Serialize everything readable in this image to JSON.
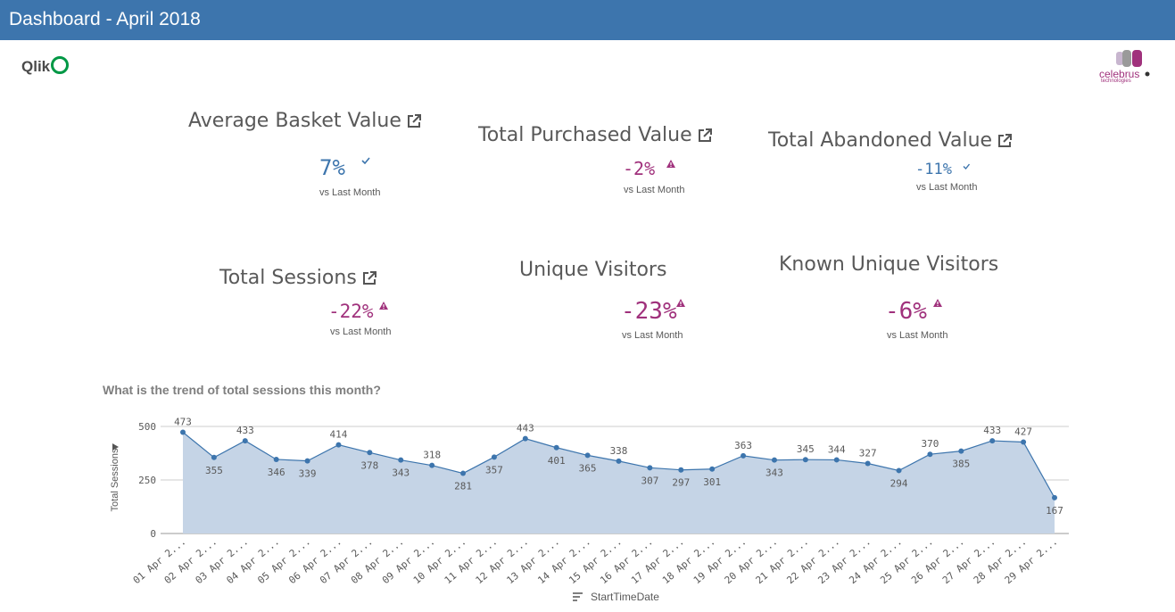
{
  "header": {
    "title": "Dashboard - April 2018"
  },
  "logos": {
    "qlik_text": "Qlik",
    "celebrus_text": "celebrus",
    "celebrus_sub": "technologies"
  },
  "kpis": [
    {
      "title": "Average Basket Value",
      "value": "7%",
      "sub": "vs Last Month",
      "trend": "good",
      "has_link": true
    },
    {
      "title": "Total Purchased Value",
      "value": "-2%",
      "sub": "vs Last Month",
      "trend": "warning",
      "has_link": true
    },
    {
      "title": "Total Abandoned Value",
      "value": "-11%",
      "sub": "vs Last Month",
      "trend": "good",
      "has_link": true
    },
    {
      "title": "Total Sessions",
      "value": "-22%",
      "sub": "vs Last Month",
      "trend": "warning",
      "has_link": true
    },
    {
      "title": "Unique Visitors",
      "value": "-23%",
      "sub": "vs Last Month",
      "trend": "warning",
      "has_link": false
    },
    {
      "title": "Known Unique Visitors",
      "value": "-6%",
      "sub": "vs Last Month",
      "trend": "warning",
      "has_link": false
    }
  ],
  "colors": {
    "header_bg": "#3d75ad",
    "good": "#3d75ad",
    "warning": "#a0317c",
    "series": "#3d75ad",
    "area": "#c5d4e6"
  },
  "chart": {
    "title": "What is the trend of total sessions this month?",
    "dimension_label": "StartTimeDate"
  },
  "chart_data": {
    "type": "area",
    "ylabel": "Total Sessions",
    "xlabel": "StartTimeDate",
    "ylim": [
      0,
      500
    ],
    "yticks": [
      0,
      250,
      500
    ],
    "categories": [
      "01 Apr 2...",
      "02 Apr 2...",
      "03 Apr 2...",
      "04 Apr 2...",
      "05 Apr 2...",
      "06 Apr 2...",
      "07 Apr 2...",
      "08 Apr 2...",
      "09 Apr 2...",
      "10 Apr 2...",
      "11 Apr 2...",
      "12 Apr 2...",
      "13 Apr 2...",
      "14 Apr 2...",
      "15 Apr 2...",
      "16 Apr 2...",
      "17 Apr 2...",
      "18 Apr 2...",
      "19 Apr 2...",
      "20 Apr 2...",
      "21 Apr 2...",
      "22 Apr 2...",
      "23 Apr 2...",
      "24 Apr 2...",
      "25 Apr 2...",
      "26 Apr 2...",
      "27 Apr 2...",
      "28 Apr 2...",
      "29 Apr 2..."
    ],
    "values": [
      473,
      355,
      433,
      346,
      339,
      414,
      378,
      343,
      318,
      281,
      357,
      443,
      401,
      365,
      338,
      307,
      297,
      301,
      363,
      343,
      345,
      344,
      327,
      294,
      370,
      385,
      433,
      427,
      167
    ],
    "grid": true
  }
}
